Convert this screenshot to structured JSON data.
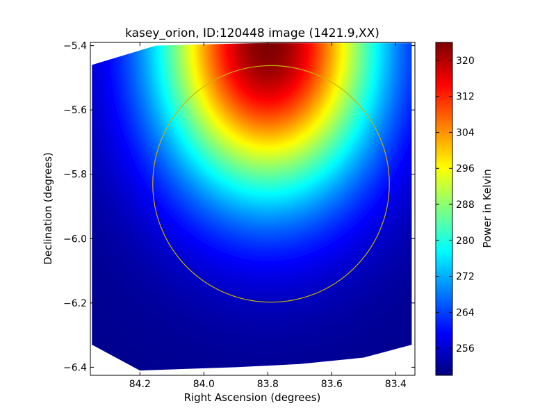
{
  "chart_data": {
    "type": "heatmap",
    "title": "kasey_orion, ID:120448 image (1421.9,XX)",
    "xlabel": "Right Ascension (degrees)",
    "ylabel": "Declination (degrees)",
    "xlim": [
      84.355,
      83.34
    ],
    "ylim": [
      -6.425,
      -5.39
    ],
    "x_ticks": [
      84.2,
      84.0,
      83.8,
      83.6,
      83.4
    ],
    "x_tick_labels": [
      "84.2",
      "84.0",
      "83.8",
      "83.6",
      "83.4"
    ],
    "y_ticks": [
      -5.4,
      -5.6,
      -5.8,
      -6.0,
      -6.2,
      -6.4
    ],
    "y_tick_labels": [
      "−5.4",
      "−5.6",
      "−5.8",
      "−6.0",
      "−6.2",
      "−6.4"
    ],
    "colormap": "jet",
    "colorbar": {
      "label": "Power in Kelvin",
      "range": [
        250,
        324
      ],
      "ticks": [
        256,
        264,
        272,
        280,
        288,
        296,
        304,
        312,
        320
      ],
      "tick_labels": [
        "256",
        "264",
        "272",
        "280",
        "288",
        "296",
        "304",
        "312",
        "320"
      ]
    },
    "peak": {
      "ra": 83.8,
      "dec": -5.4,
      "value": 324
    },
    "map_outline": [
      [
        84.35,
        -5.46
      ],
      [
        84.25,
        -5.43
      ],
      [
        84.15,
        -5.4
      ],
      [
        83.75,
        -5.39
      ],
      [
        83.35,
        -5.39
      ],
      [
        83.35,
        -6.33
      ],
      [
        83.5,
        -6.37
      ],
      [
        83.7,
        -6.39
      ],
      [
        83.9,
        -6.4
      ],
      [
        84.2,
        -6.41
      ],
      [
        84.35,
        -6.33
      ]
    ],
    "annotations": [
      {
        "type": "circle",
        "center": [
          83.79,
          -5.83
        ],
        "radius": 0.37,
        "color": "#c8b400"
      }
    ],
    "grid": false
  }
}
